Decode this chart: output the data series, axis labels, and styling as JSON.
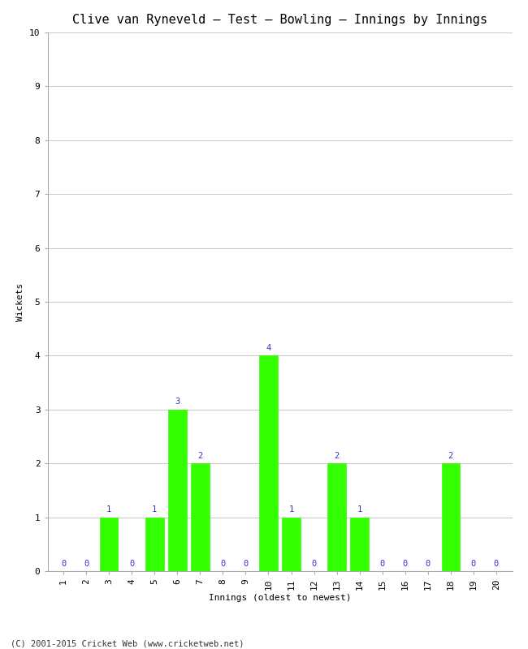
{
  "title": "Clive van Ryneveld – Test – Bowling – Innings by Innings",
  "xlabel": "Innings (oldest to newest)",
  "ylabel": "Wickets",
  "footer": "(C) 2001-2015 Cricket Web (www.cricketweb.net)",
  "innings": [
    1,
    2,
    3,
    4,
    5,
    6,
    7,
    8,
    9,
    10,
    11,
    12,
    13,
    14,
    15,
    16,
    17,
    18,
    19,
    20
  ],
  "wickets": [
    0,
    0,
    1,
    0,
    1,
    3,
    2,
    0,
    0,
    4,
    1,
    0,
    2,
    1,
    0,
    0,
    0,
    2,
    0,
    0
  ],
  "bar_color": "#33ff00",
  "label_color": "#3333cc",
  "background_color": "#ffffff",
  "ylim": [
    0,
    10
  ],
  "yticks": [
    0,
    1,
    2,
    3,
    4,
    5,
    6,
    7,
    8,
    9,
    10
  ],
  "grid_color": "#cccccc",
  "title_fontsize": 11,
  "label_fontsize": 7.5,
  "axis_fontsize": 8,
  "footer_fontsize": 7.5
}
